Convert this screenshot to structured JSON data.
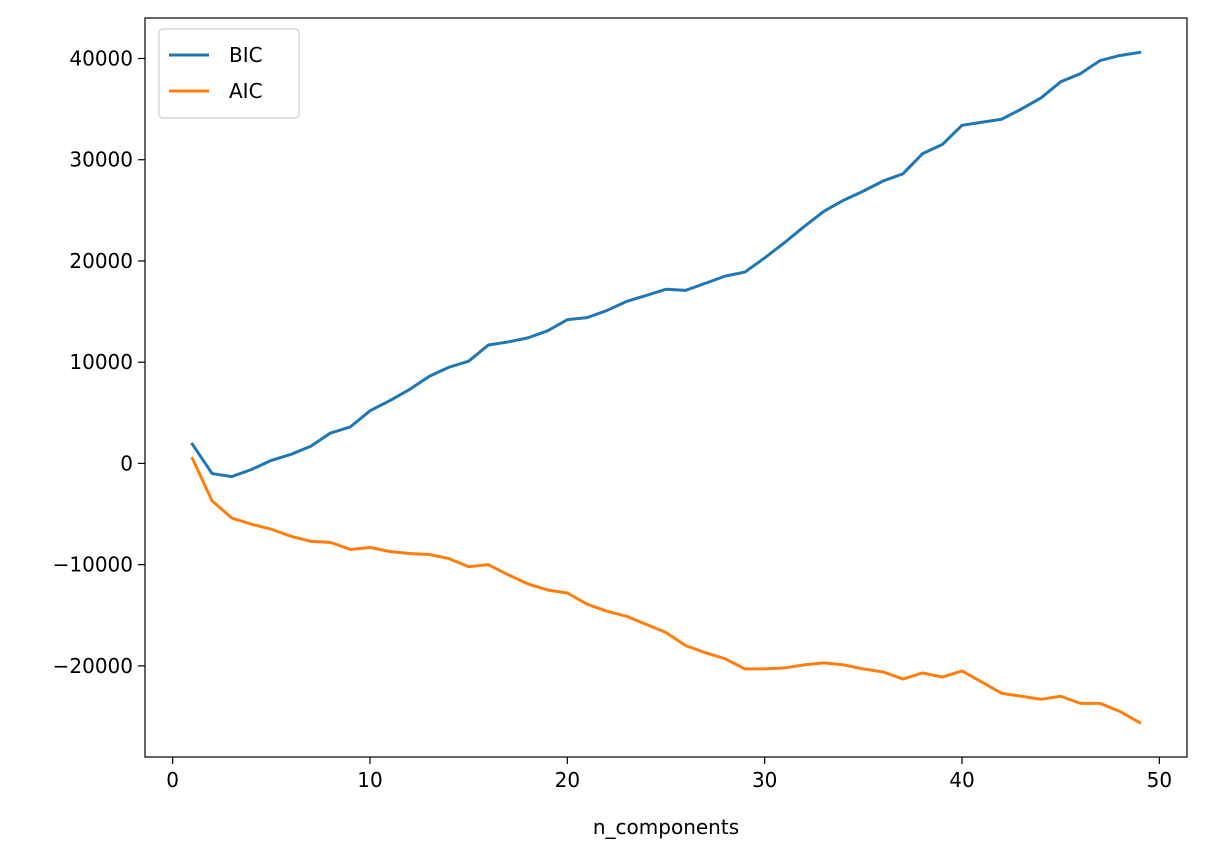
{
  "chart_data": {
    "type": "line",
    "title": "",
    "xlabel": "n_components",
    "ylabel": "",
    "xlim": [
      -1.4,
      51.4
    ],
    "ylim": [
      -29000,
      44000
    ],
    "x_ticks": [
      0,
      10,
      20,
      30,
      40,
      50
    ],
    "y_ticks": [
      -20000,
      -10000,
      0,
      10000,
      20000,
      30000,
      40000
    ],
    "x_tick_labels": [
      "0",
      "10",
      "20",
      "30",
      "40",
      "50"
    ],
    "y_tick_labels": [
      "−20000",
      "−10000",
      "0",
      "10000",
      "20000",
      "30000",
      "40000"
    ],
    "grid": false,
    "legend_position": "top-left",
    "x": [
      1,
      2,
      3,
      4,
      5,
      6,
      7,
      8,
      9,
      10,
      11,
      12,
      13,
      14,
      15,
      16,
      17,
      18,
      19,
      20,
      21,
      22,
      23,
      24,
      25,
      26,
      27,
      28,
      29,
      30,
      31,
      32,
      33,
      34,
      35,
      36,
      37,
      38,
      39,
      40,
      41,
      42,
      43,
      44,
      45,
      46,
      47,
      48,
      49
    ],
    "series": [
      {
        "name": "BIC",
        "color": "#1f77b4",
        "values": [
          1900,
          -1000,
          -1300,
          -600,
          300,
          900,
          1700,
          3000,
          3600,
          5200,
          6200,
          7300,
          8600,
          9500,
          10100,
          11700,
          12000,
          12400,
          13100,
          14200,
          14400,
          15100,
          16000,
          16600,
          17200,
          17100,
          17800,
          18500,
          18900,
          20300,
          21800,
          23400,
          24900,
          26000,
          26900,
          27900,
          28600,
          30600,
          31500,
          33400,
          33700,
          34000,
          35000,
          36100,
          37700,
          38500,
          39800,
          40300,
          40600
        ]
      },
      {
        "name": "AIC",
        "color": "#ff7f0e",
        "values": [
          500,
          -3700,
          -5400,
          -6000,
          -6500,
          -7200,
          -7700,
          -7800,
          -8500,
          -8300,
          -8700,
          -8900,
          -9000,
          -9400,
          -10200,
          -10000,
          -11000,
          -11900,
          -12500,
          -12800,
          -13900,
          -14600,
          -15100,
          -15900,
          -16700,
          -18000,
          -18700,
          -19300,
          -20300,
          -20300,
          -20200,
          -19900,
          -19700,
          -19900,
          -20300,
          -20600,
          -21300,
          -20700,
          -21100,
          -20500,
          -21600,
          -22700,
          -23000,
          -23300,
          -23000,
          -23700,
          -23700,
          -24500,
          -25600
        ]
      }
    ]
  }
}
